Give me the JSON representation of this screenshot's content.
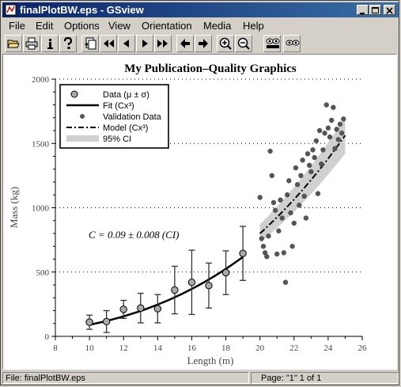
{
  "window": {
    "title": "finalPlotBW.eps - GSview"
  },
  "menu": [
    "File",
    "Edit",
    "Options",
    "View",
    "Orientation",
    "Media",
    "Help"
  ],
  "toolbar_icons": [
    "open-icon",
    "print-icon",
    "info-icon",
    "help-icon",
    "goto-page-icon",
    "first-page-icon",
    "prev-page-icon",
    "next-page-icon",
    "last-page-icon",
    "back-icon",
    "forward-icon",
    "zoom-in-icon",
    "zoom-out-icon",
    "eye-abc-icon",
    "eye-icon"
  ],
  "status": {
    "file": "File: finalPlotBW.eps",
    "page": "Page: \"1\"  1 of 1"
  },
  "chart_data": {
    "type": "scatter",
    "title": "My Publication–Quality Graphics",
    "xlabel": "Length (m)",
    "ylabel": "Mass (kg)",
    "xlim": [
      8,
      26
    ],
    "ylim": [
      0,
      2000
    ],
    "xticks": [
      "8",
      "10",
      "12",
      "14",
      "16",
      "18",
      "20",
      "22",
      "24",
      "26"
    ],
    "yticks": [
      "0",
      "500",
      "1000",
      "1500",
      "2000"
    ],
    "grid": "horizontal dotted",
    "annotation": "C = 0.09 ± 0.008 (CI)",
    "legend": {
      "placement": "top-left",
      "entries": [
        "Data (μ ± σ)",
        "Fit (Cx³)",
        "Validation Data",
        "Model (Cx³)",
        "95% CI"
      ]
    },
    "series": [
      {
        "name": "Data (μ ± σ)",
        "x": [
          10,
          11,
          12,
          13,
          14,
          15,
          16,
          17,
          18,
          19
        ],
        "y": [
          110,
          115,
          210,
          220,
          215,
          360,
          420,
          395,
          495,
          645
        ],
        "err": [
          55,
          85,
          70,
          115,
          110,
          185,
          250,
          175,
          170,
          210
        ]
      },
      {
        "name": "Fit (Cx³)",
        "coef": 0.09,
        "x_range": [
          10,
          19
        ]
      },
      {
        "name": "Validation Data",
        "x": [
          20.0,
          20.1,
          20.2,
          20.3,
          20.4,
          20.5,
          20.6,
          20.7,
          20.8,
          20.9,
          21.0,
          21.1,
          21.2,
          21.3,
          21.4,
          21.5,
          21.6,
          21.7,
          21.8,
          21.9,
          22.0,
          22.1,
          22.2,
          22.3,
          22.4,
          22.5,
          22.6,
          22.7,
          22.8,
          22.9,
          23.0,
          23.1,
          23.2,
          23.3,
          23.4,
          23.5,
          23.6,
          23.7,
          23.8,
          23.9,
          24.0,
          24.1,
          24.2,
          24.3,
          24.4,
          24.5,
          24.6,
          24.7,
          24.8,
          24.9
        ],
        "y": [
          1080,
          760,
          700,
          650,
          620,
          780,
          1440,
          1250,
          1040,
          980,
          640,
          820,
          1060,
          920,
          650,
          420,
          1100,
          1210,
          960,
          700,
          880,
          1310,
          1180,
          1020,
          1250,
          1370,
          1090,
          920,
          1420,
          1330,
          1280,
          1450,
          1390,
          1520,
          1110,
          1600,
          1340,
          1450,
          1580,
          1800,
          1620,
          1550,
          1680,
          1780,
          1460,
          1610,
          1530,
          1650,
          1580,
          1690
        ]
      },
      {
        "name": "Model (Cx³)",
        "coef": 0.1,
        "x_range": [
          20,
          25
        ]
      },
      {
        "name": "95% CI",
        "lower_coef": 0.091,
        "upper_coef": 0.109,
        "x_range": [
          20,
          25
        ]
      }
    ]
  }
}
